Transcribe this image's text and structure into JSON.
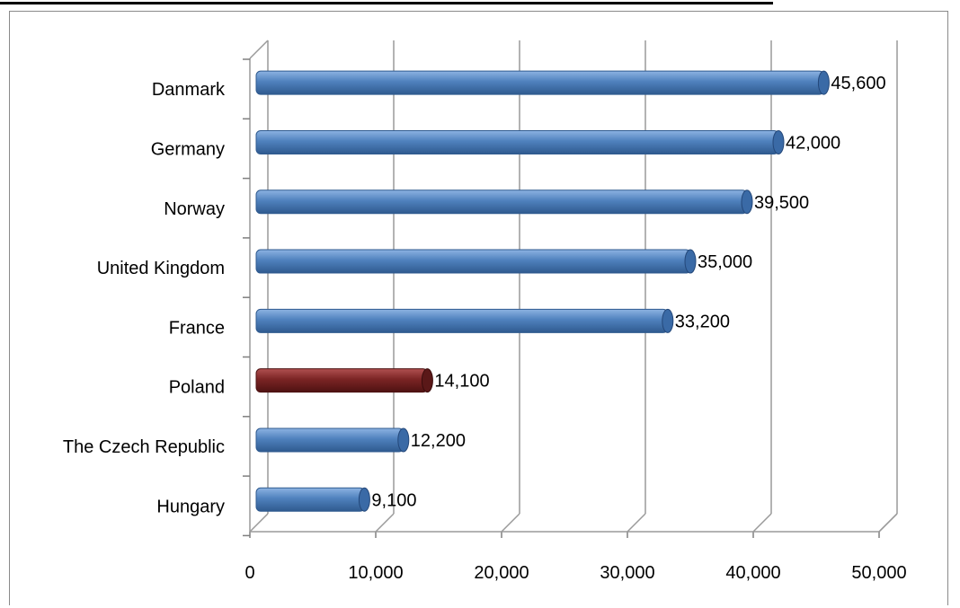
{
  "chart_data": {
    "type": "bar",
    "orientation": "horizontal",
    "categories": [
      "Danmark",
      "Germany",
      "Norway",
      "United Kingdom",
      "France",
      "Poland",
      "The Czech Republic",
      "Hungary"
    ],
    "values": [
      45600,
      42000,
      39500,
      35000,
      33200,
      14100,
      12200,
      9100
    ],
    "value_labels": [
      "45,600",
      "42,000",
      "39,500",
      "35,000",
      "33,200",
      "14,100",
      "12,200",
      "9,100"
    ],
    "highlight_category": "Poland",
    "colors": {
      "default": "#4f81bd",
      "highlight": "#7b2424"
    },
    "xlim": [
      0,
      50000
    ],
    "x_ticks": [
      0,
      10000,
      20000,
      30000,
      40000,
      50000
    ],
    "x_tick_labels": [
      "0",
      "10,000",
      "20,000",
      "30,000",
      "40,000",
      "50,000"
    ],
    "grid": true,
    "legend": "none",
    "title": "",
    "xlabel": "",
    "ylabel": ""
  }
}
